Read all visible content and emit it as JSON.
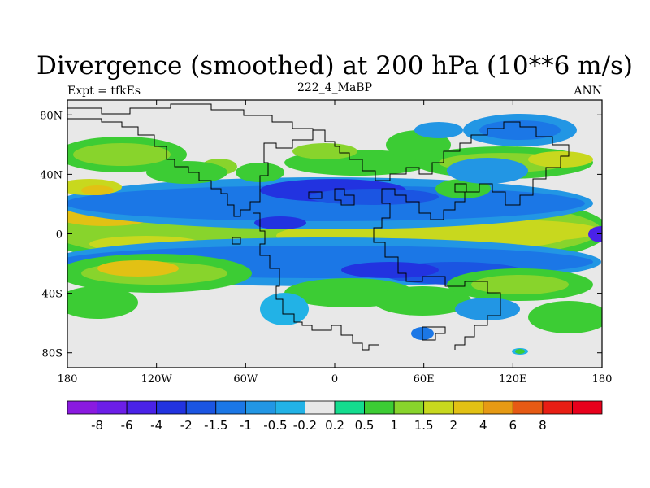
{
  "chart_data": {
    "type": "heatmap",
    "title": "Divergence (smoothed) at 200 hPa (10**6 m/s)",
    "left_label": "Expt = tfkEs",
    "center_label": "222_4_MaBP",
    "right_label": "ANN",
    "x_ticks": [
      "180",
      "120W",
      "60W",
      "0",
      "60E",
      "120E",
      "180"
    ],
    "x_tick_lon": [
      -180,
      -120,
      -60,
      0,
      60,
      120,
      180
    ],
    "y_ticks": [
      "80N",
      "40N",
      "0",
      "40S",
      "80S"
    ],
    "y_tick_lat": [
      80,
      40,
      0,
      -40,
      -80
    ],
    "xlim": [
      -180,
      180
    ],
    "ylim": [
      -90,
      90
    ],
    "colorbar": {
      "colors": [
        "#8a1ae0",
        "#6c1ee8",
        "#4a22e8",
        "#2233e0",
        "#1b55e2",
        "#1b77e6",
        "#2296e4",
        "#22b2e6",
        "#e8e8e8",
        "#14dc8e",
        "#3ccc34",
        "#88d42c",
        "#c8d81e",
        "#e2c114",
        "#e69a14",
        "#e65a14",
        "#e81e14",
        "#e8001c"
      ],
      "labels": [
        "-8",
        "-6",
        "-4",
        "-2",
        "-1.5",
        "-1",
        "-0.5",
        "-0.2",
        "0.2",
        "0.5",
        "1",
        "1.5",
        "2",
        "4",
        "6",
        "8"
      ]
    }
  }
}
